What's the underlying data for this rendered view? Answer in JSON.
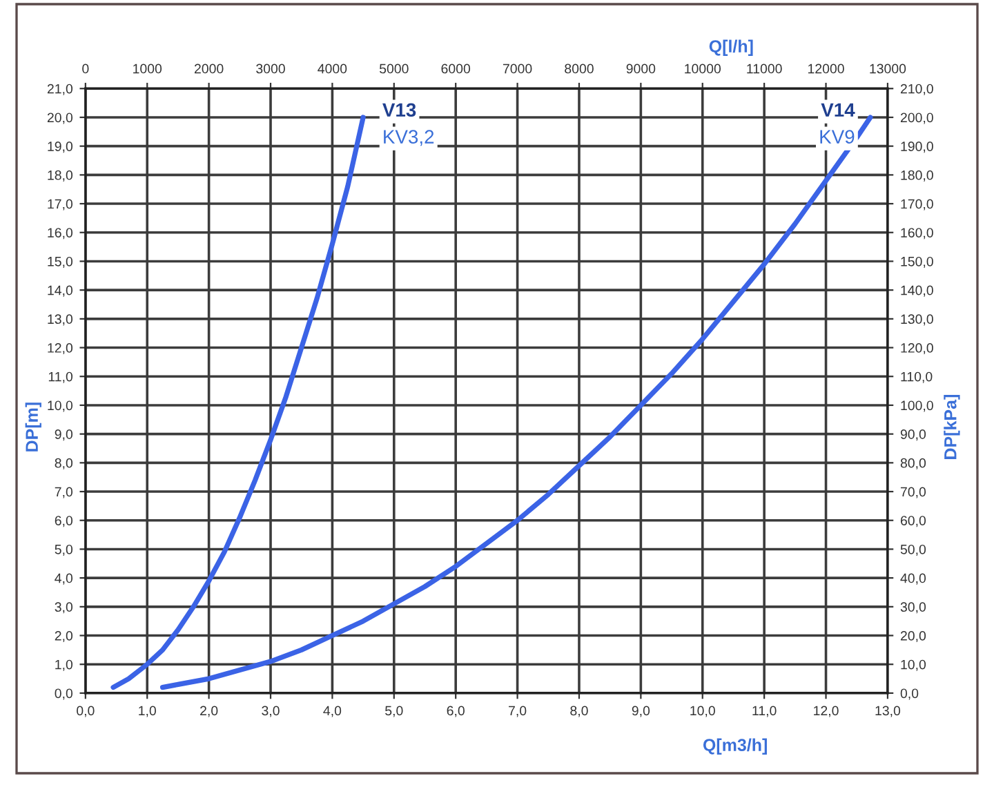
{
  "chart_data": {
    "type": "line",
    "xlabel": "Q[m3/h]",
    "ylabel": "DP[m]",
    "x2label": "Q[l/h]",
    "y2label": "DP[kPa]",
    "xlim": [
      0,
      13
    ],
    "ylim": [
      0,
      21
    ],
    "x2lim": [
      0,
      13000
    ],
    "y2lim": [
      0,
      210
    ],
    "xticks": [
      {
        "value": 0,
        "label": "0,0"
      },
      {
        "value": 1,
        "label": "1,0"
      },
      {
        "value": 2,
        "label": "2,0"
      },
      {
        "value": 3,
        "label": "3,0"
      },
      {
        "value": 4,
        "label": "4,0"
      },
      {
        "value": 5,
        "label": "5,0"
      },
      {
        "value": 6,
        "label": "6,0"
      },
      {
        "value": 7,
        "label": "7,0"
      },
      {
        "value": 8,
        "label": "8,0"
      },
      {
        "value": 9,
        "label": "9,0"
      },
      {
        "value": 10,
        "label": "10,0"
      },
      {
        "value": 11,
        "label": "11,0"
      },
      {
        "value": 12,
        "label": "12,0"
      },
      {
        "value": 13,
        "label": "13,0"
      }
    ],
    "x2ticks": [
      0,
      1000,
      2000,
      3000,
      4000,
      5000,
      6000,
      7000,
      8000,
      9000,
      10000,
      11000,
      12000,
      13000
    ],
    "yticks": [
      {
        "value": 0,
        "label": "0,0"
      },
      {
        "value": 1,
        "label": "1,0"
      },
      {
        "value": 2,
        "label": "2,0"
      },
      {
        "value": 3,
        "label": "3,0"
      },
      {
        "value": 4,
        "label": "4,0"
      },
      {
        "value": 5,
        "label": "5,0"
      },
      {
        "value": 6,
        "label": "6,0"
      },
      {
        "value": 7,
        "label": "7,0"
      },
      {
        "value": 8,
        "label": "8,0"
      },
      {
        "value": 9,
        "label": "9,0"
      },
      {
        "value": 10,
        "label": "10,0"
      },
      {
        "value": 11,
        "label": "11,0"
      },
      {
        "value": 12,
        "label": "12,0"
      },
      {
        "value": 13,
        "label": "13,0"
      },
      {
        "value": 14,
        "label": "14,0"
      },
      {
        "value": 15,
        "label": "15,0"
      },
      {
        "value": 16,
        "label": "16,0"
      },
      {
        "value": 17,
        "label": "17,0"
      },
      {
        "value": 18,
        "label": "18,0"
      },
      {
        "value": 19,
        "label": "19,0"
      },
      {
        "value": 20,
        "label": "20,0"
      },
      {
        "value": 21,
        "label": "21,0"
      }
    ],
    "y2ticks": [
      {
        "value": 0,
        "label": "0,0"
      },
      {
        "value": 10,
        "label": "10,0"
      },
      {
        "value": 20,
        "label": "20,0"
      },
      {
        "value": 30,
        "label": "30,0"
      },
      {
        "value": 40,
        "label": "40,0"
      },
      {
        "value": 50,
        "label": "50,0"
      },
      {
        "value": 60,
        "label": "60,0"
      },
      {
        "value": 70,
        "label": "70,0"
      },
      {
        "value": 80,
        "label": "80,0"
      },
      {
        "value": 90,
        "label": "90,0"
      },
      {
        "value": 100,
        "label": "100,0"
      },
      {
        "value": 110,
        "label": "110,0"
      },
      {
        "value": 120,
        "label": "120,0"
      },
      {
        "value": 130,
        "label": "130,0"
      },
      {
        "value": 140,
        "label": "140,0"
      },
      {
        "value": 150,
        "label": "150,0"
      },
      {
        "value": 160,
        "label": "160,0"
      },
      {
        "value": 170,
        "label": "170,0"
      },
      {
        "value": 180,
        "label": "180,0"
      },
      {
        "value": 190,
        "label": "190,0"
      },
      {
        "value": 200,
        "label": "200,0"
      },
      {
        "value": 210,
        "label": "210,0"
      }
    ],
    "series": [
      {
        "name": "V13",
        "color": "#3b63e6",
        "x": [
          0.45,
          0.7,
          1.0,
          1.25,
          1.5,
          1.75,
          2.0,
          2.25,
          2.5,
          2.75,
          3.0,
          3.25,
          3.5,
          3.75,
          4.0,
          4.25,
          4.5
        ],
        "values": [
          0.2,
          0.5,
          1.0,
          1.5,
          2.2,
          3.0,
          3.9,
          4.9,
          6.1,
          7.4,
          8.8,
          10.3,
          12.0,
          13.7,
          15.6,
          17.6,
          20.0
        ]
      },
      {
        "name": "V14",
        "color": "#3b63e6",
        "x": [
          1.25,
          1.5,
          2.0,
          2.5,
          3.0,
          3.5,
          4.0,
          4.5,
          5.0,
          5.5,
          6.0,
          6.5,
          7.0,
          7.5,
          8.0,
          8.5,
          9.0,
          9.5,
          10.0,
          10.5,
          11.0,
          11.5,
          12.0,
          12.5,
          12.72
        ],
        "values": [
          0.2,
          0.3,
          0.5,
          0.8,
          1.1,
          1.5,
          2.0,
          2.5,
          3.1,
          3.7,
          4.4,
          5.2,
          6.0,
          6.9,
          7.9,
          8.9,
          10.0,
          11.1,
          12.3,
          13.6,
          14.9,
          16.3,
          17.8,
          19.3,
          20.0
        ]
      }
    ],
    "annotations": [
      {
        "text": "KV3,2",
        "x": 4.5,
        "y": 20.0
      },
      {
        "text": "KV9",
        "x": 12.72,
        "y": 20.0
      }
    ],
    "grid": true,
    "marker": "none",
    "line_style": "solid"
  }
}
